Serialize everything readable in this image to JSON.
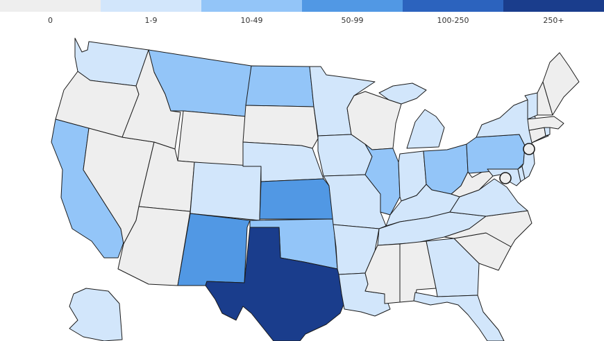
{
  "legend": {
    "bins": [
      {
        "label": "0",
        "color": "#eeeeee"
      },
      {
        "label": "1-9",
        "color": "#d2e6fb"
      },
      {
        "label": "10-49",
        "color": "#93c5f8"
      },
      {
        "label": "50-99",
        "color": "#5198e4"
      },
      {
        "label": "100-250",
        "color": "#2c63be"
      },
      {
        "label": "250+",
        "color": "#1a3d8c"
      }
    ]
  },
  "states": {
    "WA": 1,
    "OR": 0,
    "CA": 2,
    "NV": 0,
    "ID": 0,
    "MT": 2,
    "WY": 0,
    "UT": 0,
    "AZ": 0,
    "CO": 1,
    "NM": 3,
    "ND": 2,
    "SD": 0,
    "NE": 1,
    "KS": 3,
    "OK": 2,
    "TX": 5,
    "MN": 1,
    "IA": 1,
    "MO": 1,
    "AR": 1,
    "LA": 1,
    "WI": 0,
    "IL": 2,
    "MI": 1,
    "IN": 1,
    "OH": 2,
    "KY": 1,
    "TN": 1,
    "MS": 0,
    "AL": 0,
    "GA": 1,
    "FL": 1,
    "SC": 0,
    "NC": 0,
    "VA": 1,
    "WV": 0,
    "MD": 1,
    "DE": 1,
    "PA": 2,
    "NJ": 1,
    "NY": 1,
    "CT": 0,
    "RI": 1,
    "MA": 0,
    "VT": 1,
    "NH": 0,
    "ME": 0,
    "AK": 1
  },
  "markers": [
    "washington-dc",
    "new-york-city"
  ]
}
